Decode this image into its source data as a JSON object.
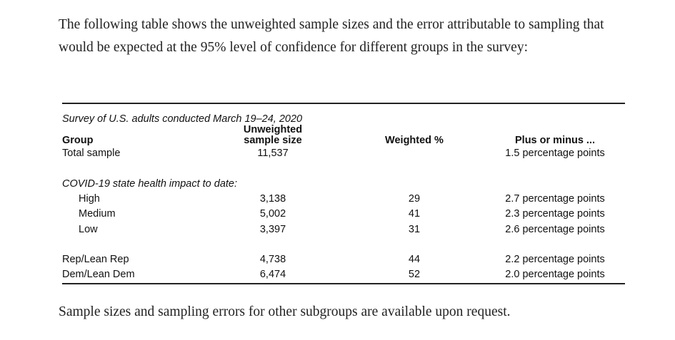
{
  "intro": "The following table shows the unweighted sample sizes and the error attributable to sampling that would be expected at the 95% level of confidence for different groups in the survey:",
  "table": {
    "caption": "Survey of U.S. adults conducted March 19–24, 2020",
    "headers": {
      "group": "Group",
      "size": [
        "Unweighted",
        "sample size"
      ],
      "weighted": "Weighted %",
      "error": "Plus or minus ..."
    },
    "groups": [
      {
        "rows": [
          {
            "label": "Total sample",
            "size": "11,537",
            "error": "1.5 percentage points"
          }
        ]
      },
      {
        "label": "COVID-19 state health impact to date:",
        "rows": [
          {
            "label": "High",
            "size": "3,138",
            "weighted": "29",
            "error": "2.7 percentage points"
          },
          {
            "label": "Medium",
            "size": "5,002",
            "weighted": "41",
            "error": "2.3 percentage points"
          },
          {
            "label": "Low",
            "size": "3,397",
            "weighted": "31",
            "error": "2.6 percentage points"
          }
        ]
      },
      {
        "rows": [
          {
            "label": "Rep/Lean Rep",
            "size": "4,738",
            "weighted": "44",
            "error": "2.2 percentage points"
          },
          {
            "label": "Dem/Lean Dem",
            "size": "6,474",
            "weighted": "52",
            "error": "2.0 percentage points"
          }
        ]
      }
    ]
  },
  "closing": "Sample sizes and sampling errors for other subgroups are available upon request."
}
